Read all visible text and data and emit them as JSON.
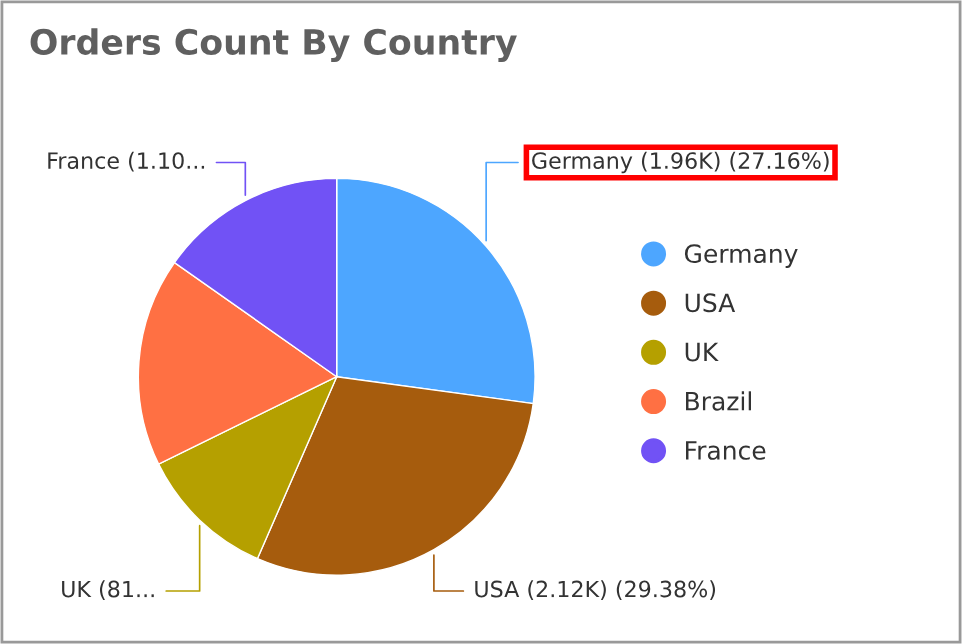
{
  "chart_data": {
    "type": "pie",
    "title": "Orders Count By Country",
    "categories": [
      "Germany",
      "USA",
      "UK",
      "Brazil",
      "France"
    ],
    "values": [
      27.16,
      29.38,
      11.2,
      17.02,
      15.24
    ],
    "colors": [
      "#4da6ff",
      "#a65c0d",
      "#b5a000",
      "#ff7043",
      "#7152f5"
    ],
    "value_labels": [
      "Germany (1.96K) (27.16%)",
      "USA (2.12K) (29.38%)",
      "UK (81...",
      null,
      "France (1.10..."
    ],
    "legend": "right"
  }
}
